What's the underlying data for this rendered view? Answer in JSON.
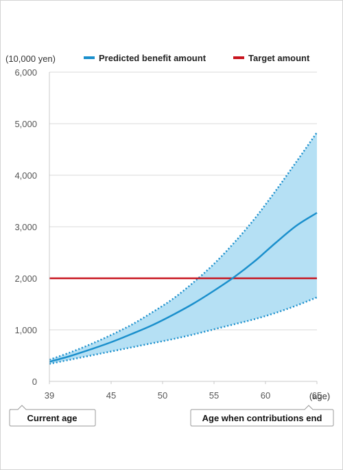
{
  "chart_data": {
    "type": "line",
    "ylabel_unit": "(10,000 yen)",
    "xlabel_unit": "(age)",
    "xlim": [
      39,
      65
    ],
    "ylim": [
      0,
      6000
    ],
    "x_ticks": [
      39,
      45,
      50,
      55,
      60,
      65
    ],
    "y_ticks": [
      0,
      1000,
      2000,
      3000,
      4000,
      5000,
      6000
    ],
    "y_tick_labels": [
      "0",
      "1,000",
      "2,000",
      "3,000",
      "4,000",
      "5,000",
      "6,000"
    ],
    "grid": true,
    "legend_position": "top",
    "series": [
      {
        "name": "Predicted benefit amount",
        "color": "#1a8fcc",
        "x": [
          39,
          41,
          43,
          45,
          47,
          49,
          51,
          53,
          55,
          57,
          59,
          61,
          63,
          65
        ],
        "values": [
          380,
          490,
          620,
          760,
          920,
          1090,
          1290,
          1510,
          1760,
          2030,
          2340,
          2690,
          3020,
          3270
        ]
      },
      {
        "name": "Target amount",
        "color": "#c8141e",
        "x": [
          39,
          65
        ],
        "values": [
          2000,
          2000
        ]
      }
    ],
    "range_band": {
      "color": "#b5e0f4",
      "border_color": "#1a8fcc",
      "x": [
        39,
        41,
        43,
        45,
        47,
        49,
        51,
        53,
        55,
        57,
        59,
        61,
        63,
        65
      ],
      "upper": [
        420,
        560,
        720,
        900,
        1100,
        1340,
        1600,
        1920,
        2280,
        2700,
        3170,
        3700,
        4260,
        4830
      ],
      "lower": [
        340,
        420,
        500,
        580,
        660,
        740,
        820,
        910,
        1010,
        1110,
        1210,
        1330,
        1470,
        1630
      ]
    }
  },
  "callouts": {
    "current_age": "Current age",
    "contributions_end": "Age when contributions end"
  }
}
